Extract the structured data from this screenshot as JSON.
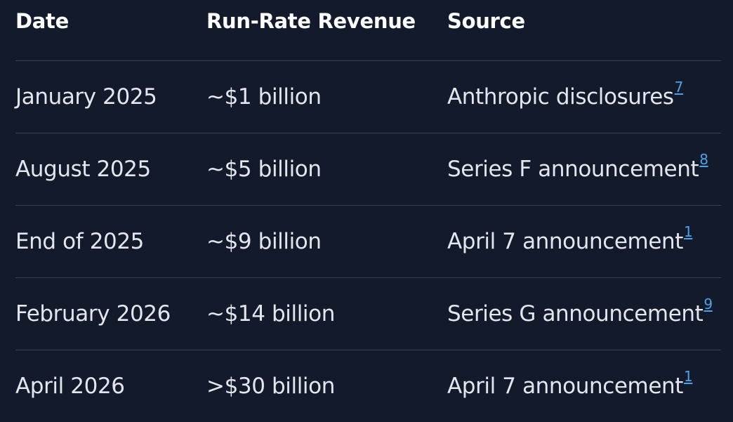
{
  "table": {
    "headers": [
      "Date",
      "Run-Rate Revenue",
      "Source"
    ],
    "rows": [
      {
        "date": "January 2025",
        "revenue": "~$1 billion",
        "source": "Anthropic disclosures",
        "ref": "7"
      },
      {
        "date": "August 2025",
        "revenue": "~$5 billion",
        "source": "Series F announcement",
        "ref": "8"
      },
      {
        "date": "End of 2025",
        "revenue": "~$9 billion",
        "source": "April 7 announcement",
        "ref": "1"
      },
      {
        "date": "February 2026",
        "revenue": "~$14 billion",
        "source": "Series G announcement",
        "ref": "9"
      },
      {
        "date": "April 2026",
        "revenue": ">$30 billion",
        "source": "April 7 announcement",
        "ref": "1"
      }
    ]
  },
  "colors": {
    "background": "#131a2b",
    "text": "#e3e6ec",
    "header_text": "#ffffff",
    "divider": "#3a4254",
    "link": "#4da3e8"
  }
}
